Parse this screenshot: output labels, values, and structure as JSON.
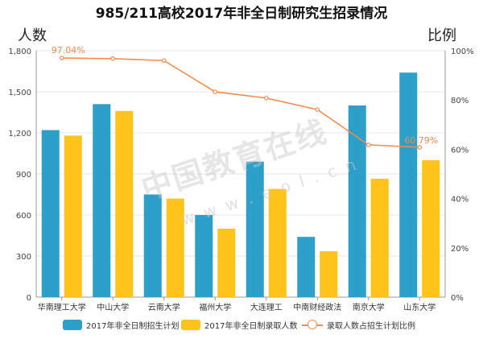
{
  "chart_data": {
    "type": "bar",
    "title": "985/211高校2017年非全日制研究生招录情况",
    "ylabel_left": "人数",
    "ylabel_right": "比例",
    "categories": [
      "华南理工大学",
      "中山大学",
      "云南大学",
      "福州大学",
      "大连理工",
      "中南财经政法",
      "南京大学",
      "山东大学"
    ],
    "series": [
      {
        "name": "2017年非全日制招生计划",
        "type": "bar",
        "color": "#2ca0c8",
        "values": [
          1220,
          1410,
          750,
          600,
          990,
          440,
          1400,
          1640
        ]
      },
      {
        "name": "2017年非全日制录取人数",
        "type": "bar",
        "color": "#fec41a",
        "values": [
          1180,
          1360,
          720,
          500,
          790,
          335,
          865,
          1000
        ]
      },
      {
        "name": "录取人数占招生计划比例",
        "type": "line",
        "color": "#f58b4c",
        "values": [
          97.04,
          96.8,
          96.0,
          83.3,
          80.8,
          76.1,
          61.8,
          60.79
        ]
      }
    ],
    "ylim_left": [
      0,
      1800
    ],
    "yticks_left": [
      "0",
      "300",
      "600",
      "900",
      "1,200",
      "1,500",
      "1,800"
    ],
    "ylim_right": [
      0,
      100
    ],
    "yticks_right": [
      "0%",
      "20%",
      "40%",
      "60%",
      "80%",
      "100%"
    ],
    "annotations": [
      "97.04%",
      "60.79%"
    ],
    "grid": true,
    "legend": "bottom"
  },
  "watermark": {
    "text": "中国教育在线",
    "sub": "w w w . e o l . c n"
  }
}
